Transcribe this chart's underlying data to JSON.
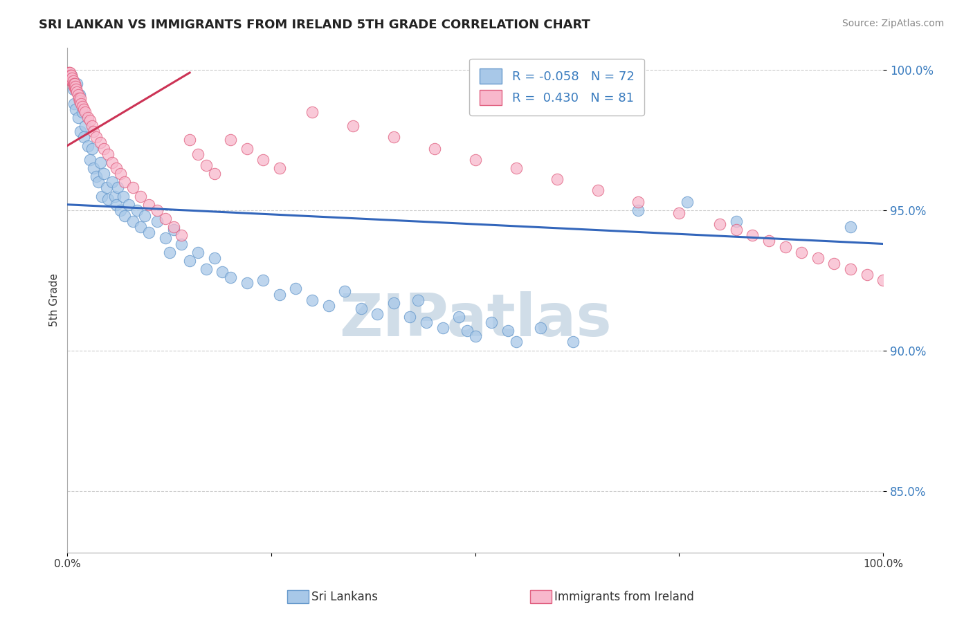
{
  "title": "SRI LANKAN VS IMMIGRANTS FROM IRELAND 5TH GRADE CORRELATION CHART",
  "source_text": "Source: ZipAtlas.com",
  "ylabel": "5th Grade",
  "xlim": [
    0.0,
    1.0
  ],
  "ylim": [
    0.828,
    1.008
  ],
  "yticks": [
    0.85,
    0.9,
    0.95,
    1.0
  ],
  "ytick_labels": [
    "85.0%",
    "90.0%",
    "95.0%",
    "100.0%"
  ],
  "xticks": [
    0.0,
    0.25,
    0.5,
    0.75,
    1.0
  ],
  "xtick_labels": [
    "0.0%",
    "",
    "",
    "",
    "100.0%"
  ],
  "legend_r_blue": "-0.058",
  "legend_n_blue": "72",
  "legend_r_pink": "0.430",
  "legend_n_pink": "81",
  "blue_color": "#a8c8e8",
  "blue_edge_color": "#6699cc",
  "pink_color": "#f8b8cc",
  "pink_edge_color": "#e06080",
  "trendline_blue_color": "#3366bb",
  "trendline_pink_color": "#cc3355",
  "watermark_text": "ZIPatlas",
  "watermark_color": "#d0dde8",
  "background_color": "#ffffff",
  "grid_color": "#cccccc",
  "blue_trend_x0": 0.0,
  "blue_trend_y0": 0.952,
  "blue_trend_x1": 1.0,
  "blue_trend_y1": 0.938,
  "pink_trend_x0": 0.0,
  "pink_trend_y0": 0.973,
  "pink_trend_x1": 0.15,
  "pink_trend_y1": 0.999,
  "blue_dots": [
    [
      0.005,
      0.998
    ],
    [
      0.007,
      0.993
    ],
    [
      0.008,
      0.988
    ],
    [
      0.01,
      0.986
    ],
    [
      0.012,
      0.995
    ],
    [
      0.013,
      0.983
    ],
    [
      0.015,
      0.991
    ],
    [
      0.016,
      0.978
    ],
    [
      0.018,
      0.985
    ],
    [
      0.02,
      0.976
    ],
    [
      0.022,
      0.98
    ],
    [
      0.025,
      0.973
    ],
    [
      0.028,
      0.968
    ],
    [
      0.03,
      0.972
    ],
    [
      0.032,
      0.965
    ],
    [
      0.035,
      0.962
    ],
    [
      0.038,
      0.96
    ],
    [
      0.04,
      0.967
    ],
    [
      0.042,
      0.955
    ],
    [
      0.045,
      0.963
    ],
    [
      0.048,
      0.958
    ],
    [
      0.05,
      0.954
    ],
    [
      0.055,
      0.96
    ],
    [
      0.058,
      0.955
    ],
    [
      0.06,
      0.952
    ],
    [
      0.062,
      0.958
    ],
    [
      0.065,
      0.95
    ],
    [
      0.068,
      0.955
    ],
    [
      0.07,
      0.948
    ],
    [
      0.075,
      0.952
    ],
    [
      0.08,
      0.946
    ],
    [
      0.085,
      0.95
    ],
    [
      0.09,
      0.944
    ],
    [
      0.095,
      0.948
    ],
    [
      0.1,
      0.942
    ],
    [
      0.11,
      0.946
    ],
    [
      0.12,
      0.94
    ],
    [
      0.125,
      0.935
    ],
    [
      0.13,
      0.943
    ],
    [
      0.14,
      0.938
    ],
    [
      0.15,
      0.932
    ],
    [
      0.16,
      0.935
    ],
    [
      0.17,
      0.929
    ],
    [
      0.18,
      0.933
    ],
    [
      0.19,
      0.928
    ],
    [
      0.2,
      0.926
    ],
    [
      0.22,
      0.924
    ],
    [
      0.24,
      0.925
    ],
    [
      0.26,
      0.92
    ],
    [
      0.28,
      0.922
    ],
    [
      0.3,
      0.918
    ],
    [
      0.32,
      0.916
    ],
    [
      0.34,
      0.921
    ],
    [
      0.36,
      0.915
    ],
    [
      0.38,
      0.913
    ],
    [
      0.4,
      0.917
    ],
    [
      0.42,
      0.912
    ],
    [
      0.43,
      0.918
    ],
    [
      0.44,
      0.91
    ],
    [
      0.46,
      0.908
    ],
    [
      0.48,
      0.912
    ],
    [
      0.49,
      0.907
    ],
    [
      0.5,
      0.905
    ],
    [
      0.52,
      0.91
    ],
    [
      0.54,
      0.907
    ],
    [
      0.55,
      0.903
    ],
    [
      0.58,
      0.908
    ],
    [
      0.62,
      0.903
    ],
    [
      0.7,
      0.95
    ],
    [
      0.76,
      0.953
    ],
    [
      0.82,
      0.946
    ],
    [
      0.96,
      0.944
    ]
  ],
  "pink_dots": [
    [
      0.001,
      0.999
    ],
    [
      0.001,
      0.998
    ],
    [
      0.002,
      0.999
    ],
    [
      0.002,
      0.997
    ],
    [
      0.002,
      0.998
    ],
    [
      0.003,
      0.998
    ],
    [
      0.003,
      0.997
    ],
    [
      0.003,
      0.999
    ],
    [
      0.004,
      0.997
    ],
    [
      0.004,
      0.998
    ],
    [
      0.005,
      0.996
    ],
    [
      0.005,
      0.997
    ],
    [
      0.005,
      0.998
    ],
    [
      0.006,
      0.996
    ],
    [
      0.006,
      0.997
    ],
    [
      0.007,
      0.995
    ],
    [
      0.007,
      0.996
    ],
    [
      0.008,
      0.995
    ],
    [
      0.008,
      0.994
    ],
    [
      0.009,
      0.994
    ],
    [
      0.009,
      0.995
    ],
    [
      0.01,
      0.993
    ],
    [
      0.01,
      0.994
    ],
    [
      0.011,
      0.993
    ],
    [
      0.012,
      0.992
    ],
    [
      0.013,
      0.991
    ],
    [
      0.014,
      0.99
    ],
    [
      0.015,
      0.989
    ],
    [
      0.016,
      0.99
    ],
    [
      0.017,
      0.988
    ],
    [
      0.018,
      0.987
    ],
    [
      0.02,
      0.986
    ],
    [
      0.022,
      0.985
    ],
    [
      0.025,
      0.983
    ],
    [
      0.028,
      0.982
    ],
    [
      0.03,
      0.98
    ],
    [
      0.032,
      0.978
    ],
    [
      0.035,
      0.976
    ],
    [
      0.04,
      0.974
    ],
    [
      0.045,
      0.972
    ],
    [
      0.05,
      0.97
    ],
    [
      0.055,
      0.967
    ],
    [
      0.06,
      0.965
    ],
    [
      0.065,
      0.963
    ],
    [
      0.07,
      0.96
    ],
    [
      0.08,
      0.958
    ],
    [
      0.09,
      0.955
    ],
    [
      0.1,
      0.952
    ],
    [
      0.11,
      0.95
    ],
    [
      0.12,
      0.947
    ],
    [
      0.13,
      0.944
    ],
    [
      0.14,
      0.941
    ],
    [
      0.15,
      0.975
    ],
    [
      0.16,
      0.97
    ],
    [
      0.17,
      0.966
    ],
    [
      0.18,
      0.963
    ],
    [
      0.2,
      0.975
    ],
    [
      0.22,
      0.972
    ],
    [
      0.24,
      0.968
    ],
    [
      0.26,
      0.965
    ],
    [
      0.3,
      0.985
    ],
    [
      0.35,
      0.98
    ],
    [
      0.4,
      0.976
    ],
    [
      0.45,
      0.972
    ],
    [
      0.5,
      0.968
    ],
    [
      0.55,
      0.965
    ],
    [
      0.6,
      0.961
    ],
    [
      0.65,
      0.957
    ],
    [
      0.7,
      0.953
    ],
    [
      0.75,
      0.949
    ],
    [
      0.8,
      0.945
    ],
    [
      0.82,
      0.943
    ],
    [
      0.84,
      0.941
    ],
    [
      0.86,
      0.939
    ],
    [
      0.88,
      0.937
    ],
    [
      0.9,
      0.935
    ],
    [
      0.92,
      0.933
    ],
    [
      0.94,
      0.931
    ],
    [
      0.96,
      0.929
    ],
    [
      0.98,
      0.927
    ],
    [
      1.0,
      0.925
    ]
  ]
}
